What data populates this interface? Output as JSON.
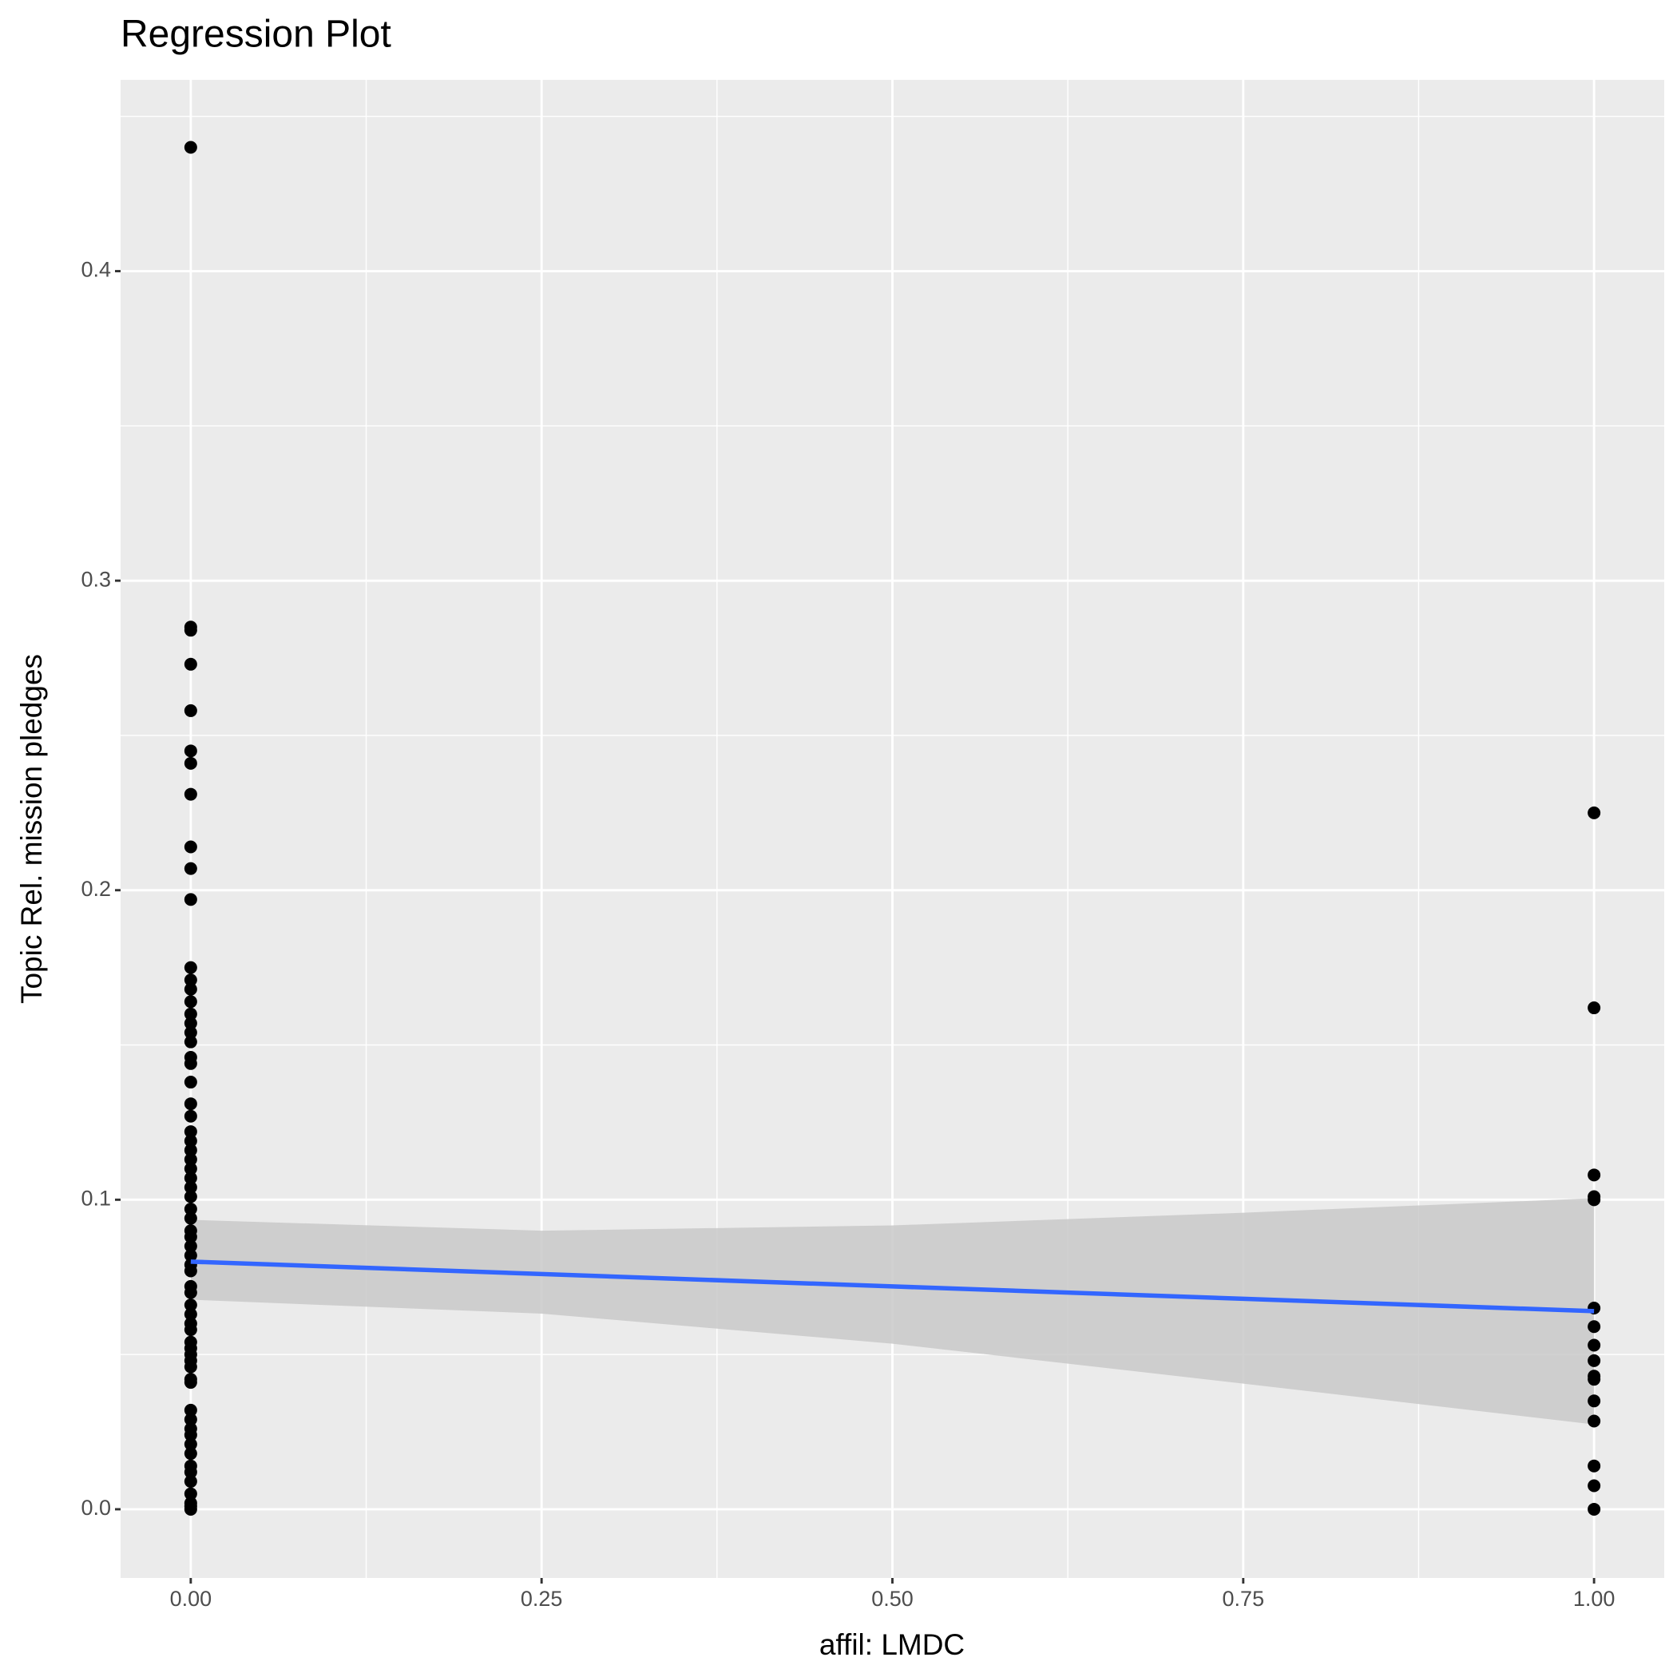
{
  "chart_data": {
    "type": "scatter",
    "title": "Regression Plot",
    "x_label": "affil: LMDC",
    "y_label": "Topic Rel. mission pledges",
    "color": "#000000",
    "x": [
      0,
      0,
      0,
      0,
      0,
      0,
      0,
      0,
      0,
      0,
      0,
      0,
      0,
      0,
      0,
      0,
      0,
      0,
      0,
      0,
      0,
      0,
      0,
      0,
      0,
      0,
      0,
      0,
      0,
      0,
      0,
      0,
      0,
      0,
      0,
      0,
      0,
      0,
      0,
      0,
      0,
      0,
      0,
      0,
      0,
      0,
      0,
      0,
      0,
      0,
      0,
      0,
      0,
      0,
      0,
      0,
      0,
      0,
      0,
      0,
      0,
      0,
      0,
      0,
      0,
      0,
      1,
      1,
      1,
      1,
      1,
      1,
      1,
      1,
      1,
      1,
      1,
      1,
      1,
      1,
      1,
      1
    ],
    "values": [
      0.44,
      0.285,
      0.284,
      0.273,
      0.258,
      0.245,
      0.241,
      0.231,
      0.214,
      0.207,
      0.197,
      0.175,
      0.171,
      0.168,
      0.164,
      0.16,
      0.157,
      0.154,
      0.151,
      0.146,
      0.144,
      0.138,
      0.131,
      0.127,
      0.122,
      0.119,
      0.116,
      0.113,
      0.11,
      0.107,
      0.104,
      0.101,
      0.097,
      0.094,
      0.09,
      0.088,
      0.085,
      0.082,
      0.079,
      0.077,
      0.072,
      0.07,
      0.066,
      0.063,
      0.06,
      0.058,
      0.054,
      0.052,
      0.05,
      0.048,
      0.046,
      0.042,
      0.041,
      0.032,
      0.029,
      0.026,
      0.024,
      0.021,
      0.018,
      0.014,
      0.012,
      0.009,
      0.005,
      0.002,
      0.001,
      0,
      0.225,
      0.162,
      0.108,
      0.101,
      0.1,
      0.065,
      0.059,
      0.053,
      0.048,
      0.043,
      0.042,
      0.035,
      0.0285,
      0.014,
      0.0076,
      0
    ],
    "fit": {
      "color": "#3366ff",
      "band_color": "#c9c9c9",
      "x": [
        0,
        0.25,
        0.5,
        0.75,
        1
      ],
      "values": [
        0.08,
        0.076,
        0.072,
        0.068,
        0.064
      ],
      "lower": [
        0.0677,
        0.0632,
        0.0535,
        0.0406,
        0.0274
      ],
      "upper": [
        0.0935,
        0.09,
        0.0917,
        0.0958,
        0.1005
      ]
    },
    "xlim": [
      -0.05,
      1.05
    ],
    "ylim": [
      -0.0222,
      0.4618
    ],
    "xticks": [
      {
        "value": 0,
        "label": "0.00"
      },
      {
        "value": 0.25,
        "label": "0.25"
      },
      {
        "value": 0.5,
        "label": "0.50"
      },
      {
        "value": 0.75,
        "label": "0.75"
      },
      {
        "value": 1,
        "label": "1.00"
      }
    ],
    "yticks": [
      {
        "value": 0,
        "label": "0.0"
      },
      0.1,
      0.2,
      0.3,
      0.4
    ],
    "grid": true
  }
}
